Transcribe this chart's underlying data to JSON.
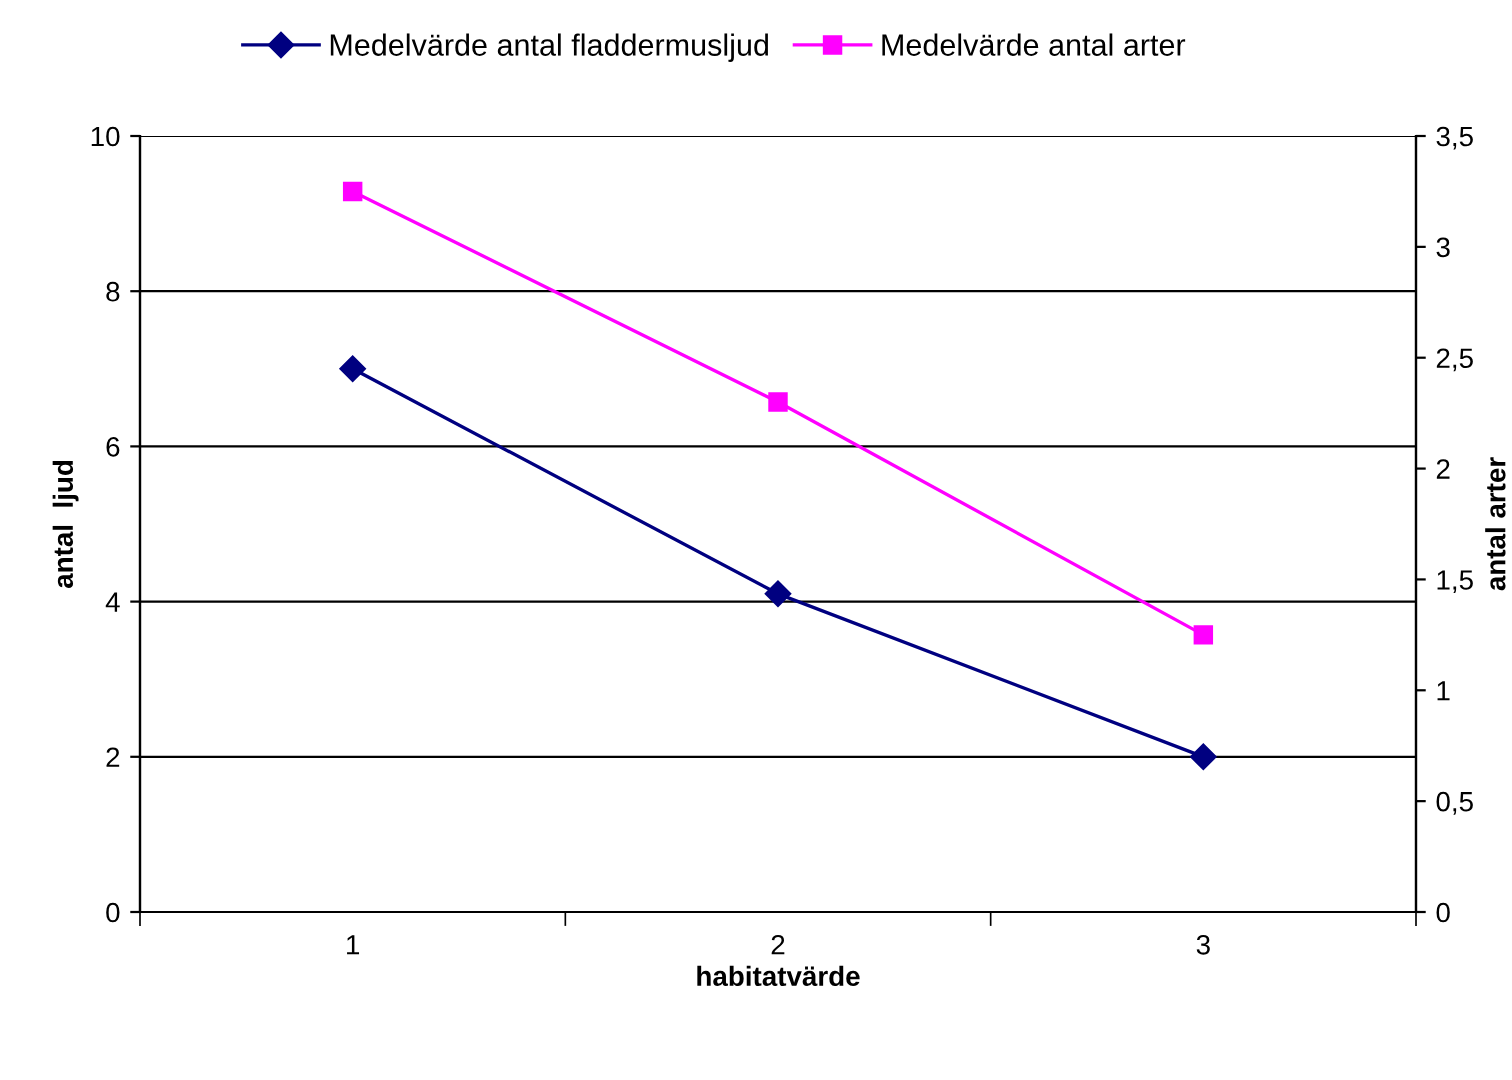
{
  "chart_data": {
    "type": "line",
    "xlabel": "habitatvärde",
    "ylabel": "antal  ljud",
    "y2label": "antal arter",
    "categories": [
      "1",
      "2",
      "3"
    ],
    "series": [
      {
        "name": "Medelvärde antal fladdermusljud",
        "color": "#000080",
        "values": [
          7,
          4.1,
          2
        ],
        "marker": "diamond"
      },
      {
        "name": "Medelvärde antal arter",
        "color": "#ff00ff",
        "values": [
          3.25,
          2.3,
          1.25
        ],
        "marker": "square",
        "axis": "y2"
      }
    ],
    "ylim": [
      0,
      10
    ],
    "yticks": [
      0,
      2,
      4,
      6,
      8,
      10
    ],
    "y2lim": [
      0,
      3.5
    ],
    "y2ticks": [
      0,
      {
        "value": 0.5,
        "label": "0,5"
      },
      1,
      {
        "value": 1.5,
        "label": "1,5"
      },
      2,
      {
        "value": 2.5,
        "label": "2,5"
      },
      3,
      {
        "value": 3.5,
        "label": "3,5"
      }
    ],
    "grid": "y",
    "legend": "top",
    "line_style": "solid"
  }
}
